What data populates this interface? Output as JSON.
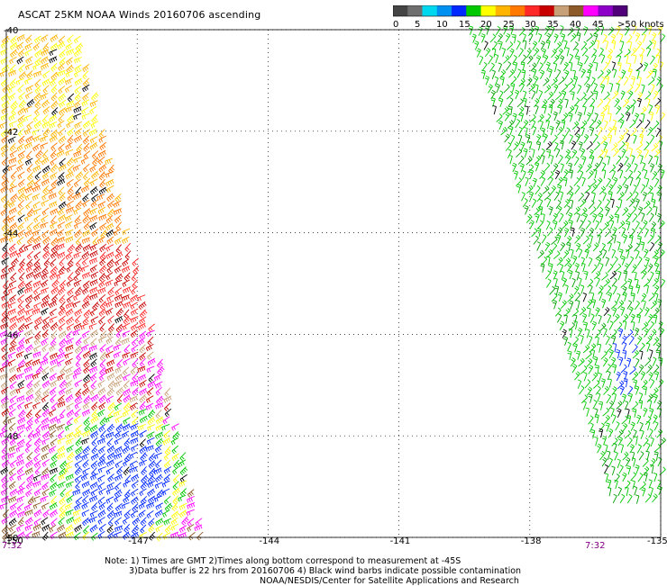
{
  "title": "ASCAT 25KM NOAA Winds 20160706 ascending",
  "legend": {
    "labels": [
      "0",
      "5",
      "10",
      "15",
      "20",
      "25",
      "30",
      "35",
      "40",
      "45",
      ">50 knots"
    ],
    "colors": [
      "#444444",
      "#6e6e6e",
      "#00d8f0",
      "#0090f0",
      "#0028ff",
      "#00c800",
      "#ffff00",
      "#ffb400",
      "#ff7800",
      "#ff2828",
      "#c80000",
      "#c8a078",
      "#8c5a28",
      "#ff00ff",
      "#8c00c8",
      "#500078"
    ]
  },
  "map": {
    "lat_labels": [
      "-40",
      "-42",
      "-44",
      "-46",
      "-48",
      "-50"
    ],
    "lon_labels": [
      "-150",
      "-147",
      "-144",
      "-141",
      "-138",
      "-135"
    ],
    "lat_range": [
      -50,
      -40
    ],
    "lon_range": [
      -150,
      -135
    ],
    "grid": "dotted"
  },
  "times": {
    "left": "7:32",
    "right": "7:32"
  },
  "notes": [
    "Note: 1) Times are GMT 2)Times along bottom correspond to measurement at -45S",
    "3)Data buffer is 22 hrs from 20160706 4) Black wind barbs indicate possible contamination",
    "NOAA/NESDIS/Center for Satellite Applications and Research"
  ]
}
